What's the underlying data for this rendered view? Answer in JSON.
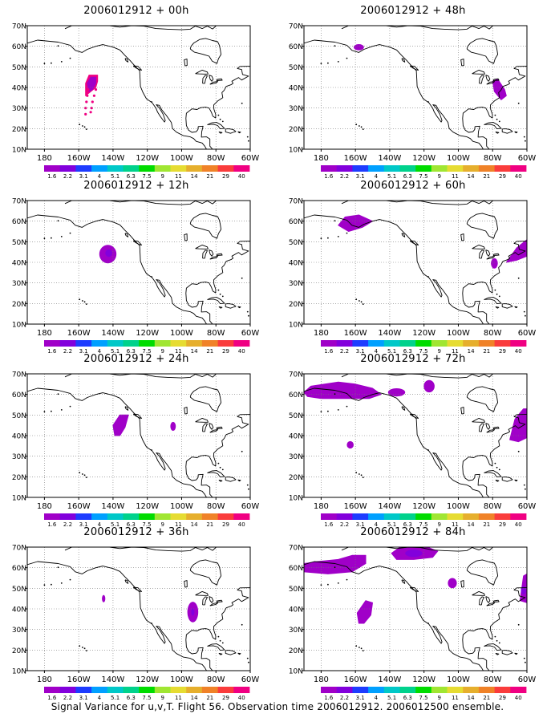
{
  "projection": {
    "lon_range": [
      -190,
      -60
    ],
    "lat_range": [
      10,
      70
    ],
    "x_ticks": [
      {
        "lon": -180,
        "label": "180"
      },
      {
        "lon": -160,
        "label": "160W"
      },
      {
        "lon": -140,
        "label": "140W"
      },
      {
        "lon": -120,
        "label": "120W"
      },
      {
        "lon": -100,
        "label": "100W"
      },
      {
        "lon": -80,
        "label": "80W"
      },
      {
        "lon": -60,
        "label": "60W"
      }
    ],
    "y_ticks": [
      {
        "lat": 10,
        "label": "10N"
      },
      {
        "lat": 20,
        "label": "20N"
      },
      {
        "lat": 30,
        "label": "30N"
      },
      {
        "lat": 40,
        "label": "40N"
      },
      {
        "lat": 50,
        "label": "50N"
      },
      {
        "lat": 60,
        "label": "60N"
      },
      {
        "lat": 70,
        "label": "70N"
      }
    ],
    "grid": "dotted"
  },
  "colorbar": {
    "labels": [
      "1.6",
      "2.2",
      "3.1",
      "4",
      "5.1",
      "6.3",
      "7.5",
      "9",
      "11",
      "14",
      "21",
      "29",
      "40"
    ],
    "colors": [
      "#a000c8",
      "#8200dc",
      "#1e3cff",
      "#00a0ff",
      "#00c8c8",
      "#00d28c",
      "#00dc00",
      "#a0e632",
      "#e6dc32",
      "#e6af2d",
      "#f08228",
      "#fa3c3c",
      "#f00082"
    ]
  },
  "coastline_color": "#000000",
  "panels": [
    {
      "title": "2006012912 + 00h",
      "features": [
        {
          "kind": "polygon",
          "pts": [
            [
              -156,
              36
            ],
            [
              -156,
              42
            ],
            [
              -154,
              46
            ],
            [
              -149,
              46
            ],
            [
              -149,
              43
            ],
            [
              -150,
              40
            ]
          ],
          "color": "#f00082"
        },
        {
          "kind": "polygon",
          "pts": [
            [
              -154,
              38
            ],
            [
              -155,
              42
            ],
            [
              -153,
              45
            ],
            [
              -150,
              45
            ],
            [
              -150,
              42
            ],
            [
              -152,
              39
            ]
          ],
          "color": "#a000c8"
        },
        {
          "kind": "dots",
          "color": "#f00082",
          "pts": [
            [
              -156,
              30
            ],
            [
              -155.5,
              33
            ],
            [
              -155,
              36
            ],
            [
              -154.5,
              39
            ],
            [
              -156,
              27
            ],
            [
              -152,
              33
            ],
            [
              -151,
              36
            ],
            [
              -150,
              39
            ],
            [
              -152.5,
              30
            ],
            [
              -153,
              28
            ]
          ]
        }
      ]
    },
    {
      "title": "2006012912 + 48h",
      "features": [
        {
          "kind": "ellipse",
          "lon": -158,
          "lat": 59.5,
          "rlon": 3,
          "rlat": 1.5,
          "color": "#a000c8"
        },
        {
          "kind": "polygon",
          "pts": [
            [
              -80,
              43
            ],
            [
              -77,
              44
            ],
            [
              -73,
              39
            ],
            [
              -72,
              36
            ],
            [
              -75,
              34
            ],
            [
              -79,
              38
            ]
          ],
          "color": "#a000c8"
        }
      ]
    },
    {
      "title": "2006012912 + 12h",
      "features": [
        {
          "kind": "ellipse",
          "lon": -143,
          "lat": 44,
          "rlon": 5,
          "rlat": 4.5,
          "color": "#a000c8"
        },
        {
          "kind": "ellipse",
          "lon": -142.5,
          "lat": 44.5,
          "rlon": 2,
          "rlat": 1.8,
          "color": "#8200dc"
        }
      ]
    },
    {
      "title": "2006012912 + 60h",
      "features": [
        {
          "kind": "polygon",
          "pts": [
            [
              -170,
              58
            ],
            [
              -166,
              62
            ],
            [
              -158,
              63
            ],
            [
              -150,
              60
            ],
            [
              -156,
              57
            ],
            [
              -164,
              55
            ]
          ],
          "color": "#a000c8"
        },
        {
          "kind": "polygon",
          "pts": [
            [
              -72,
              40
            ],
            [
              -66,
              47
            ],
            [
              -60,
              51
            ],
            [
              -60,
              43
            ],
            [
              -66,
              41
            ]
          ],
          "color": "#a000c8"
        },
        {
          "kind": "ellipse",
          "lon": -79,
          "lat": 39.5,
          "rlon": 2,
          "rlat": 2.5,
          "color": "#a000c8"
        }
      ]
    },
    {
      "title": "2006012912 + 24h",
      "features": [
        {
          "kind": "polygon",
          "pts": [
            [
              -139,
              40
            ],
            [
              -140,
              45
            ],
            [
              -136,
              50
            ],
            [
              -131,
              50
            ],
            [
              -133,
              44
            ],
            [
              -136,
              40
            ]
          ],
          "color": "#a000c8"
        },
        {
          "kind": "ellipse",
          "lon": -105,
          "lat": 44.5,
          "rlon": 1.6,
          "rlat": 2.2,
          "color": "#a000c8"
        }
      ]
    },
    {
      "title": "2006012912 + 72h",
      "features": [
        {
          "kind": "polygon",
          "pts": [
            [
              -190,
              61
            ],
            [
              -186,
              64
            ],
            [
              -170,
              66
            ],
            [
              -160,
              65
            ],
            [
              -150,
              63
            ],
            [
              -145,
              60
            ],
            [
              -152,
              58
            ],
            [
              -165,
              58
            ],
            [
              -180,
              58
            ],
            [
              -188,
              59
            ]
          ],
          "color": "#a000c8"
        },
        {
          "kind": "ellipse",
          "lon": -136,
          "lat": 61,
          "rlon": 5,
          "rlat": 2,
          "color": "#a000c8"
        },
        {
          "kind": "ellipse",
          "lon": -117,
          "lat": 64,
          "rlon": 3.2,
          "rlat": 3,
          "color": "#a000c8"
        },
        {
          "kind": "ellipse",
          "lon": -163,
          "lat": 35.5,
          "rlon": 2,
          "rlat": 1.8,
          "color": "#a000c8"
        },
        {
          "kind": "polygon",
          "pts": [
            [
              -70,
              38
            ],
            [
              -67,
              48
            ],
            [
              -62,
              53
            ],
            [
              -60,
              53
            ],
            [
              -60,
              39
            ],
            [
              -65,
              37
            ]
          ],
          "color": "#a000c8"
        }
      ]
    },
    {
      "title": "2006012912 + 36h",
      "features": [
        {
          "kind": "ellipse",
          "lon": -93.5,
          "lat": 38.5,
          "rlon": 3.2,
          "rlat": 5,
          "color": "#a000c8"
        },
        {
          "kind": "ellipse",
          "lon": -93.5,
          "lat": 38.5,
          "rlon": 1,
          "rlat": 1.8,
          "color": "#8200dc"
        },
        {
          "kind": "ellipse",
          "lon": -145.5,
          "lat": 45,
          "rlon": 1,
          "rlat": 1.8,
          "color": "#a000c8"
        }
      ]
    },
    {
      "title": "2006012912 + 84h",
      "features": [
        {
          "kind": "polygon",
          "pts": [
            [
              -190,
              62
            ],
            [
              -182,
              63
            ],
            [
              -170,
              64
            ],
            [
              -162,
              66
            ],
            [
              -154,
              66
            ],
            [
              -154,
              62
            ],
            [
              -162,
              58
            ],
            [
              -176,
              57
            ],
            [
              -190,
              58
            ]
          ],
          "color": "#a000c8"
        },
        {
          "kind": "polygon",
          "pts": [
            [
              -139,
              67
            ],
            [
              -134,
              70
            ],
            [
              -118,
              70
            ],
            [
              -112,
              68
            ],
            [
              -115,
              65
            ],
            [
              -126,
              64
            ],
            [
              -136,
              64
            ]
          ],
          "color": "#a000c8"
        },
        {
          "kind": "ellipse",
          "lon": -126,
          "lat": 67,
          "rlon": 5,
          "rlat": 1.8,
          "color": "#8200dc"
        },
        {
          "kind": "polygon",
          "pts": [
            [
              -158,
              33
            ],
            [
              -159,
              38
            ],
            [
              -154,
              44
            ],
            [
              -150,
              43
            ],
            [
              -151,
              37
            ],
            [
              -155,
              33
            ]
          ],
          "color": "#a000c8"
        },
        {
          "kind": "ellipse",
          "lon": -103.5,
          "lat": 52.5,
          "rlon": 2.6,
          "rlat": 2.5,
          "color": "#a000c8"
        },
        {
          "kind": "polygon",
          "pts": [
            [
              -64,
              44
            ],
            [
              -62,
              56
            ],
            [
              -60,
              57
            ],
            [
              -60,
              43
            ]
          ],
          "color": "#a000c8"
        },
        {
          "kind": "ellipse",
          "lon": -62,
          "lat": 49,
          "rlon": 1.5,
          "rlat": 2,
          "color": "#8200dc"
        }
      ]
    }
  ],
  "caption": "Signal Variance for u,v,T. Flight 56. Observation time 2006012912. 2006012500 ensemble."
}
